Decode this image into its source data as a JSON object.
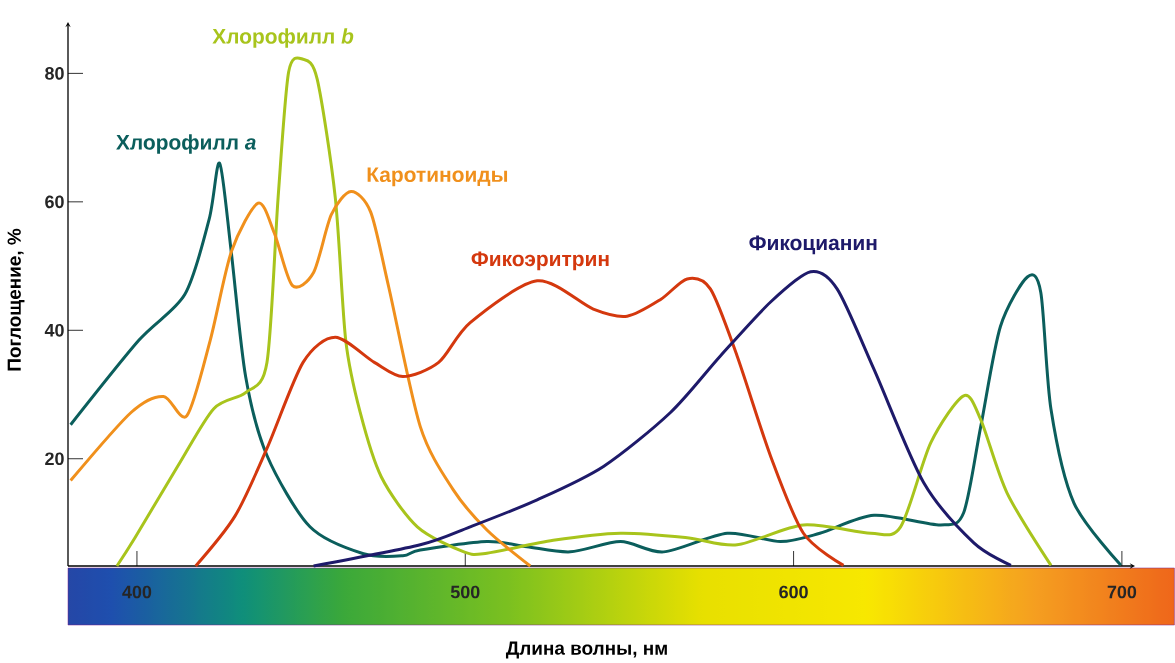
{
  "chart_data": {
    "type": "line",
    "xlabel": "Длина волны, нм",
    "ylabel": "Поглощение, %",
    "xlim": [
      379,
      704
    ],
    "ylim": [
      3.3,
      88
    ],
    "xticks": [
      400,
      500,
      600,
      700
    ],
    "yticks": [
      20,
      40,
      60,
      80
    ],
    "series": [
      {
        "name": "Хлорофилл *a*",
        "color": "#0b5e5c",
        "x": [
          379.8,
          400.5,
          414.6,
          422,
          425.2,
          428.7,
          433.1,
          439.6,
          452.7,
          469,
          481,
          486.3,
          506.6,
          518.8,
          532,
          547.3,
          560.4,
          579.8,
          596,
          608,
          624.5,
          644.8,
          651.8,
          657,
          663,
          671.2,
          675.3,
          678.4,
          685.4,
          699.7
        ],
        "values": [
          25.3,
          38.4,
          45.6,
          57.3,
          66,
          52.3,
          32.8,
          20.5,
          9.4,
          5.2,
          4.9,
          5.8,
          7.1,
          6.3,
          5.5,
          7.1,
          5.5,
          8.4,
          7.1,
          8.4,
          11.2,
          9.7,
          11.6,
          25,
          40.6,
          48.3,
          45.9,
          27.7,
          13.1,
          3.4
        ]
      },
      {
        "name": "Хлорофилл *b*",
        "color": "#a8c41c",
        "x": [
          393.9,
          399.4,
          412.5,
          423.4,
          433.1,
          439.6,
          443,
          446.2,
          450.6,
          454.9,
          460.4,
          463.6,
          468,
          474.4,
          485.4,
          499.6,
          506.6,
          526.8,
          547.3,
          567.6,
          582.8,
          603,
          623.5,
          632.6,
          641.8,
          651.8,
          657,
          665,
          678.4
        ],
        "values": [
          3.3,
          7.7,
          18.9,
          27.8,
          30.3,
          35,
          60.7,
          80.2,
          82.2,
          79.1,
          60.7,
          38.4,
          27.2,
          17.2,
          9.4,
          5.5,
          5.3,
          7.3,
          8.4,
          7.7,
          6.6,
          9.7,
          8.4,
          9.4,
          22.5,
          29.8,
          26.1,
          14.7,
          3.4
        ]
      },
      {
        "name": "Каротиноиды",
        "color": "#f0901c",
        "x": [
          379.8,
          398.2,
          408.1,
          415.2,
          422.3,
          428.8,
          436.9,
          441.8,
          447.3,
          453.8,
          459.2,
          465.2,
          471.2,
          476.7,
          486.3,
          496.3,
          506.6,
          519.8
        ],
        "values": [
          16.6,
          27.2,
          29.7,
          26.7,
          38.4,
          52.3,
          59.8,
          55.2,
          47,
          49,
          58,
          61.6,
          58.4,
          46.7,
          25,
          15.2,
          8.9,
          3.3
        ]
      },
      {
        "name": "Фикоэритрин",
        "color": "#d4380e",
        "x": [
          417.9,
          429.9,
          439.6,
          450.6,
          460.4,
          472.3,
          481,
          491.9,
          501.5,
          521.9,
          539,
          549.3,
          559.5,
          567.6,
          574.7,
          582.8,
          593,
          603,
          615.2
        ],
        "values": [
          3.3,
          11.1,
          21.6,
          35,
          38.9,
          35,
          32.8,
          35,
          41.2,
          47.7,
          43.3,
          42.2,
          44.8,
          48,
          46.4,
          36,
          20.4,
          8.4,
          3.4
        ]
      },
      {
        "name": "Фикоцианин",
        "color": "#1e1a6a",
        "x": [
          453.8,
          486.3,
          501.5,
          521.9,
          542.1,
          562.5,
          577.7,
          593,
          605.2,
          613.3,
          624.5,
          639.6,
          654.9,
          666.2
        ],
        "values": [
          3.3,
          6.6,
          9.4,
          13.6,
          18.8,
          27.2,
          36,
          44.4,
          49.1,
          46.4,
          33.9,
          16.3,
          6.9,
          3.4
        ]
      }
    ]
  }
}
